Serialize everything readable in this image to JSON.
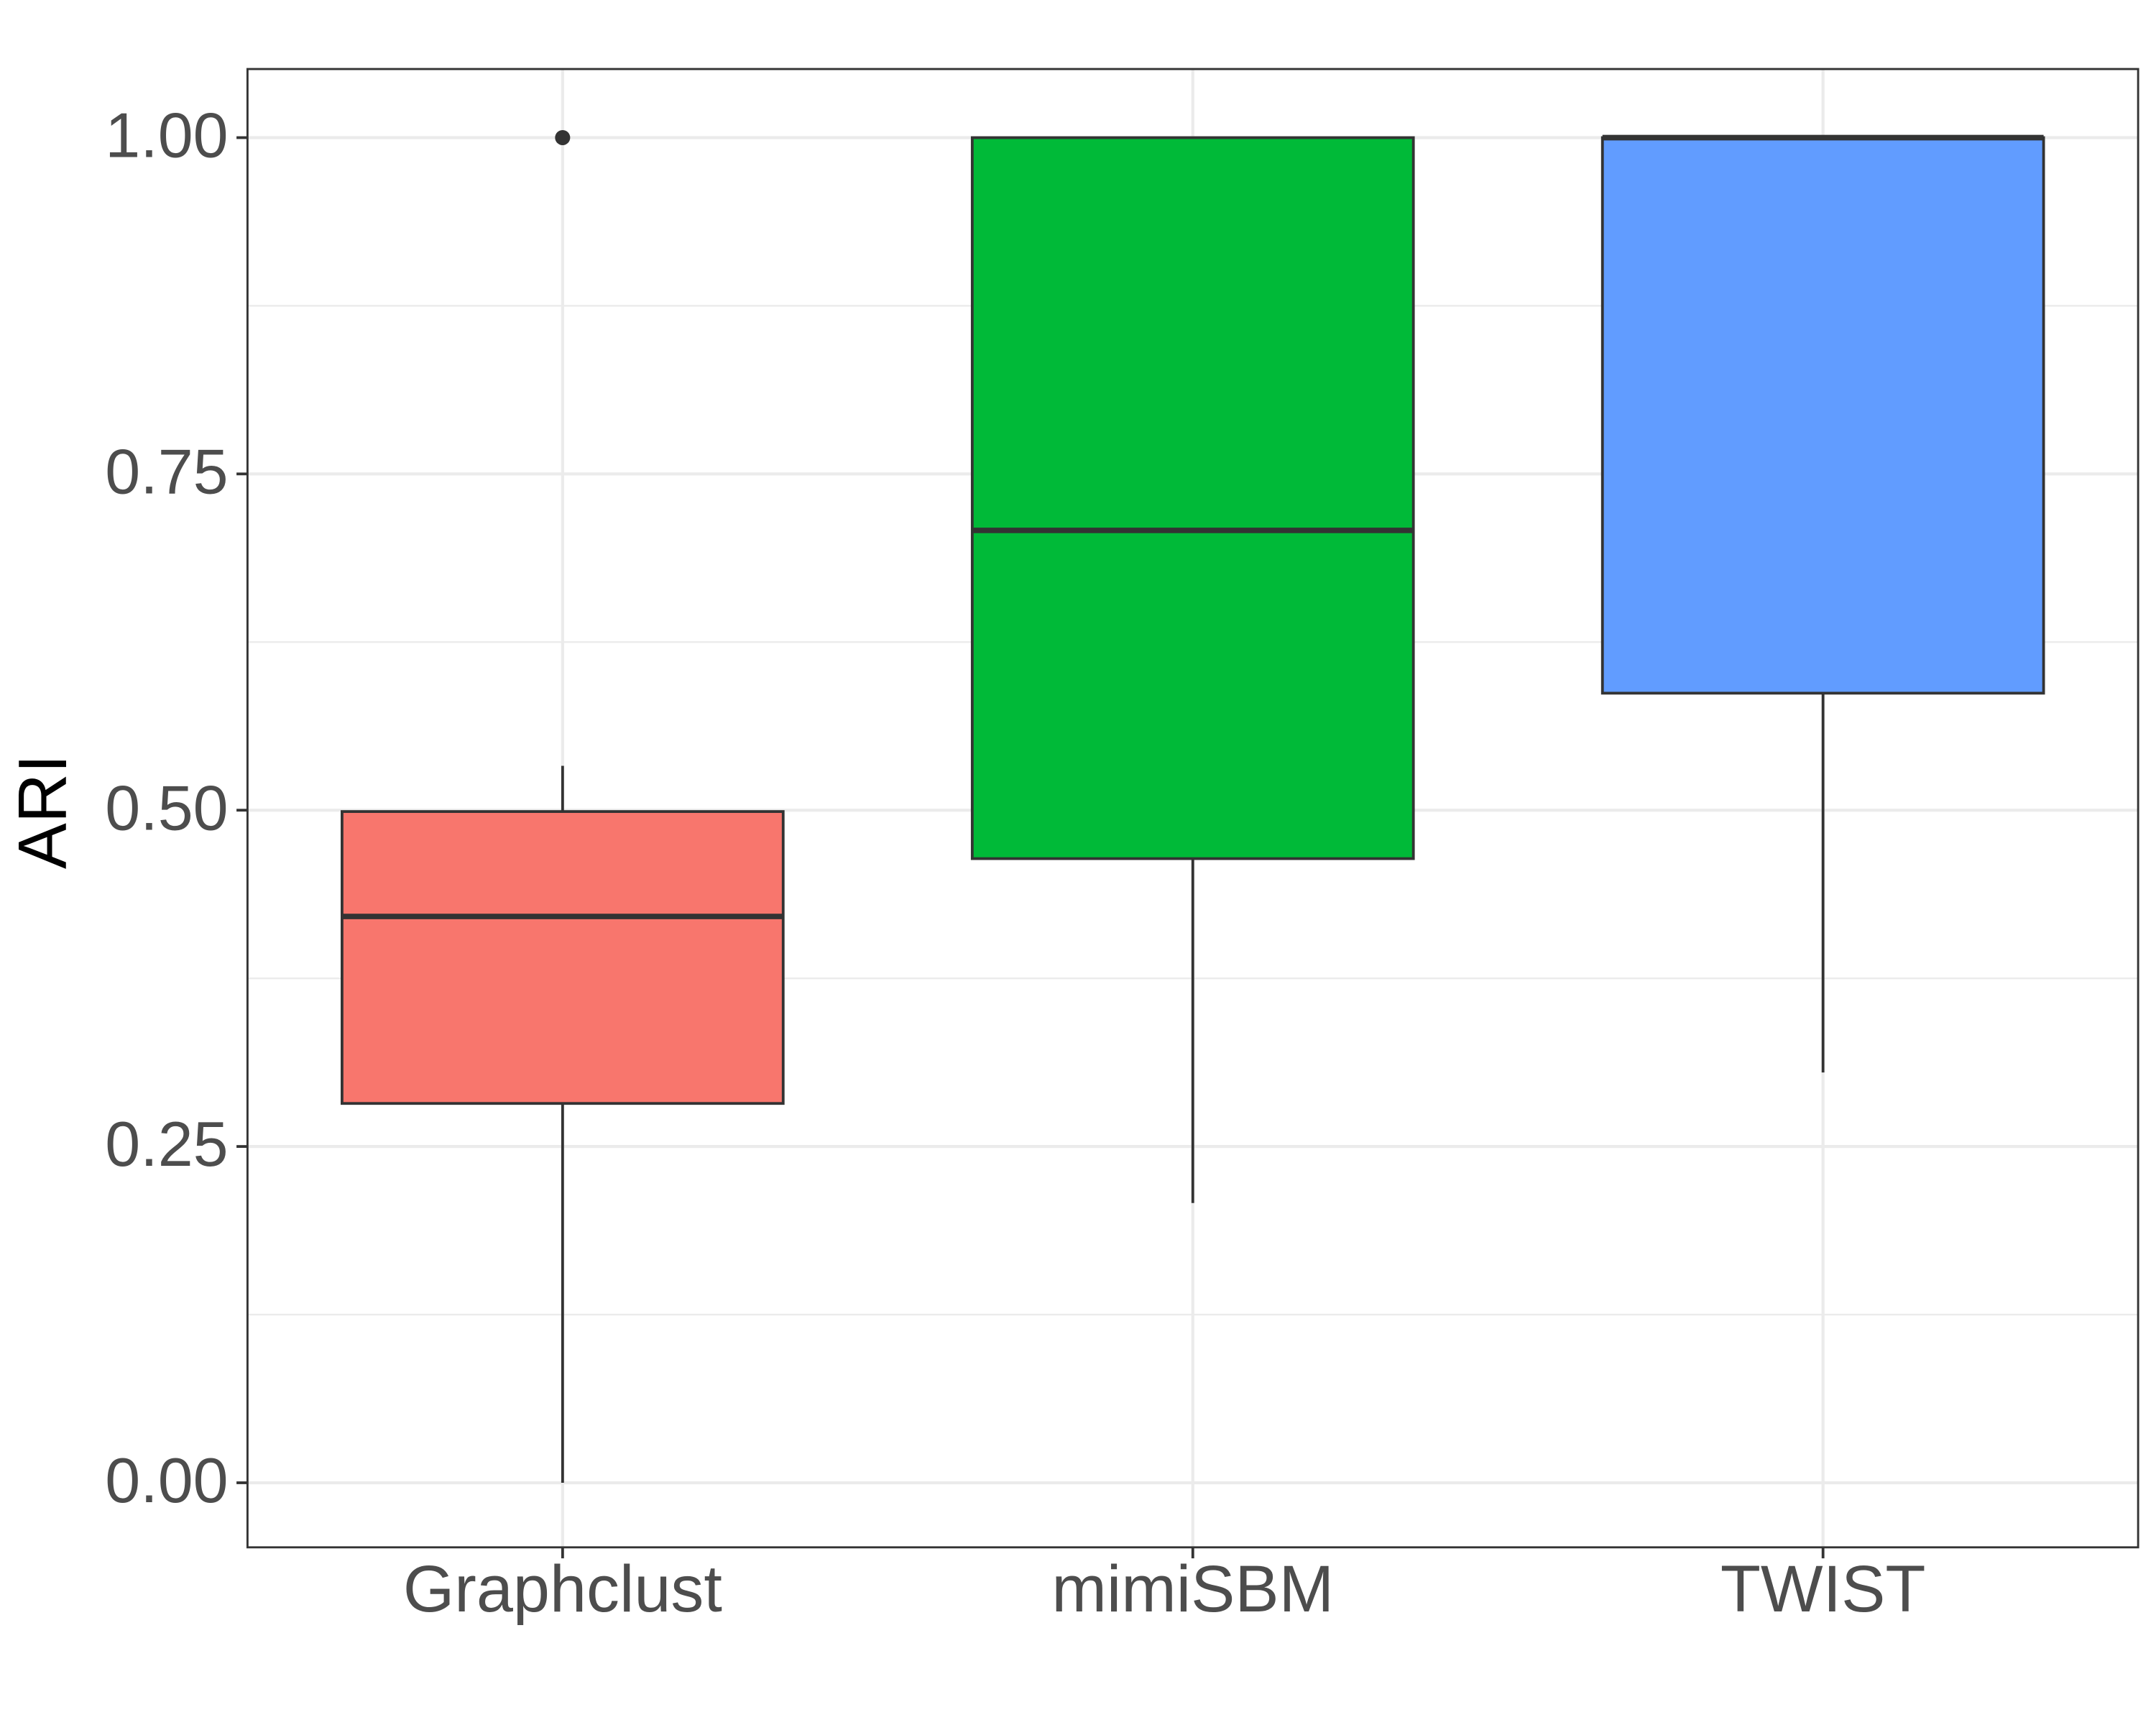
{
  "chart_data": {
    "type": "box",
    "y_label": "ARI",
    "categories": [
      "Graphclust",
      "mimiSBM",
      "TWIST"
    ],
    "colors": [
      "#F8766D",
      "#00BA38",
      "#619CFF"
    ],
    "boxes": [
      {
        "whisker_low": 0.0,
        "q1": 0.282,
        "median": 0.421,
        "q3": 0.499,
        "whisker_high": 0.533,
        "outliers": [
          1.0
        ]
      },
      {
        "whisker_low": 0.208,
        "q1": 0.464,
        "median": 0.708,
        "q3": 1.0,
        "whisker_high": 1.0,
        "outliers": []
      },
      {
        "whisker_low": 0.305,
        "q1": 0.587,
        "median": 1.0,
        "q3": 1.0,
        "whisker_high": 1.0,
        "outliers": []
      }
    ],
    "ylim": [
      -0.048,
      1.051
    ],
    "yticks": [
      {
        "value": 0,
        "label": "0.00"
      },
      {
        "value": 0.25,
        "label": "0.25"
      },
      {
        "value": 0.5,
        "label": "0.50"
      },
      {
        "value": 0.75,
        "label": "0.75"
      },
      {
        "value": 1,
        "label": "1.00"
      }
    ],
    "minor_yticks": [
      0.125,
      0.375,
      0.625,
      0.875
    ],
    "grid": true
  }
}
